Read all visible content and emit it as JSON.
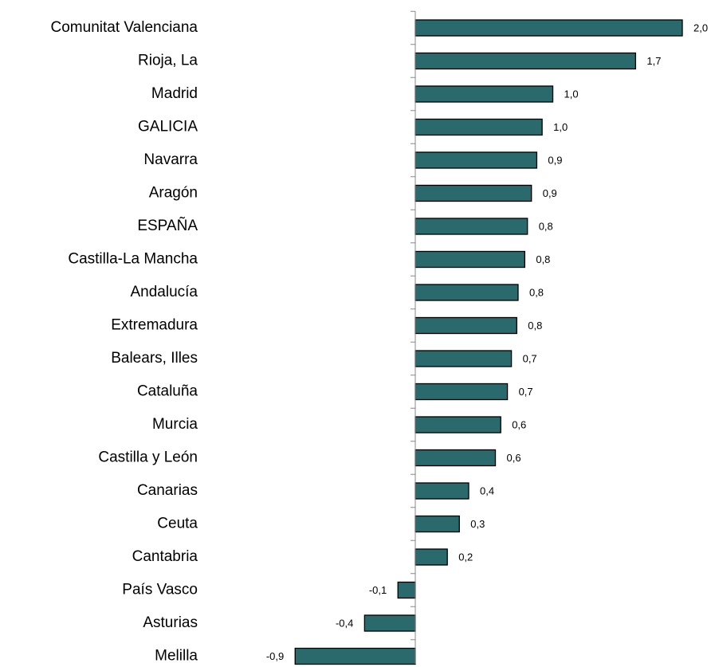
{
  "chart_data": {
    "type": "barh",
    "categories": [
      "Comunitat Valenciana",
      "Rioja, La",
      "Madrid",
      "GALICIA",
      "Navarra",
      "Aragón",
      "ESPAÑA",
      "Castilla-La Mancha",
      "Andalucía",
      "Extremadura",
      "Balears, Illes",
      "Cataluña",
      "Murcia",
      "Castilla y León",
      "Canarias",
      "Ceuta",
      "Cantabria",
      "País Vasco",
      "Asturias",
      "Melilla"
    ],
    "values": [
      2.0,
      1.65,
      1.03,
      0.95,
      0.91,
      0.87,
      0.84,
      0.82,
      0.77,
      0.76,
      0.72,
      0.69,
      0.64,
      0.6,
      0.4,
      0.33,
      0.24,
      -0.13,
      -0.38,
      -0.9
    ],
    "value_labels": [
      "2,0",
      "1,7",
      "1,0",
      "1,0",
      "0,9",
      "0,9",
      "0,8",
      "0,8",
      "0,8",
      "0,8",
      "0,7",
      "0,7",
      "0,6",
      "0,6",
      "0,4",
      "0,3",
      "0,2",
      "-0,1",
      "-0,4",
      "-0,9"
    ],
    "color": "#2a6a6d",
    "xlim": [
      -1.3,
      2.2
    ]
  }
}
